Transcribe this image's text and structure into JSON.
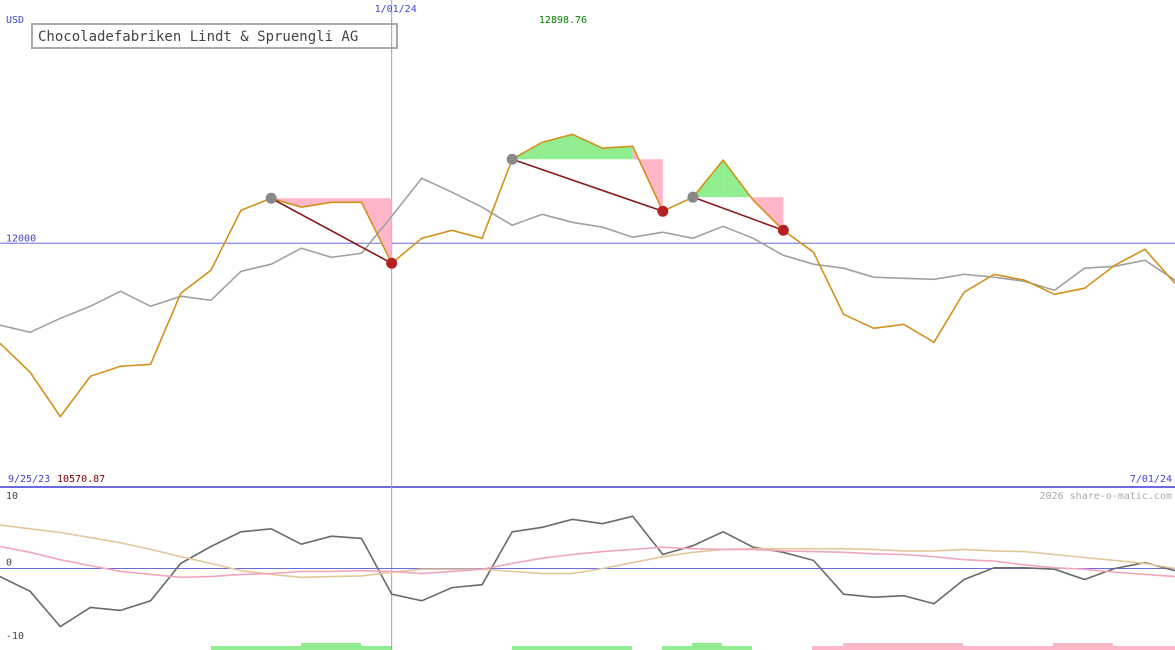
{
  "chart_data": [
    {
      "type": "line",
      "title": "Chocoladefabriken Lindt & Spruengli AG",
      "unit": "USD",
      "high": "12898.76",
      "low": "10570.87",
      "xlim": [
        0,
        39
      ],
      "xticks": [
        {
          "value": 0,
          "label": "9/25/23"
        },
        {
          "value": 13,
          "label": "1/01/24"
        },
        {
          "value": 39,
          "label": "7/01/24"
        }
      ],
      "ylim": [
        9990,
        13940
      ],
      "yticks": [
        12000
      ],
      "series": [
        {
          "color": "#d4901a",
          "values": [
            11175,
            10936,
            10570.87,
            10903,
            10985,
            11002,
            11588,
            11777,
            12272,
            12371,
            12297,
            12338,
            12338,
            11835,
            12041,
            12107,
            12041,
            12693,
            12833,
            12898.76,
            12784,
            12800,
            12264,
            12380,
            12685,
            12355,
            12107,
            11926,
            11414,
            11299,
            11332,
            11183,
            11596,
            11744,
            11695,
            11579,
            11629,
            11818,
            11950,
            11670
          ]
        },
        {
          "color": "#a0a0a0",
          "values": [
            11324,
            11266,
            11381,
            11480,
            11604,
            11480,
            11563,
            11530,
            11769,
            11827,
            11959,
            11884,
            11917,
            12223,
            12536,
            12421,
            12297,
            12149,
            12239,
            12173,
            12132,
            12050,
            12091,
            12041,
            12140,
            12041,
            11901,
            11827,
            11794,
            11720,
            11711,
            11703,
            11744,
            11720,
            11686,
            11612,
            11794,
            11810,
            11860,
            11695
          ]
        }
      ],
      "signals": [
        [
          9,
          13
        ],
        [
          17,
          22
        ],
        [
          23,
          26
        ]
      ]
    },
    {
      "type": "line",
      "caption": "2026 share-o-matic.com",
      "xlim": [
        0,
        39
      ],
      "ylim": [
        -10,
        10
      ],
      "yticks": [
        -10,
        0,
        10
      ],
      "series": [
        {
          "color": "#f2a6bd",
          "values": [
            3.0,
            2.2,
            1.2,
            0.4,
            -0.4,
            -0.8,
            -1.2,
            -1.1,
            -0.8,
            -0.7,
            -0.4,
            -0.4,
            -0.3,
            -0.4,
            -0.7,
            -0.4,
            -0.1,
            0.7,
            1.4,
            1.9,
            2.3,
            2.6,
            2.9,
            2.7,
            2.6,
            2.6,
            2.4,
            2.3,
            2.2,
            2.0,
            1.9,
            1.6,
            1.2,
            1.0,
            0.5,
            0.1,
            -0.1,
            -0.5,
            -0.8,
            -1.1
          ]
        },
        {
          "color": "#e2c79c",
          "values": [
            5.9,
            5.4,
            4.9,
            4.2,
            3.5,
            2.6,
            1.6,
            0.7,
            -0.3,
            -0.8,
            -1.2,
            -1.1,
            -1.0,
            -0.5,
            -0.1,
            -0.1,
            -0.1,
            -0.4,
            -0.7,
            -0.7,
            0,
            0.8,
            1.6,
            2.2,
            2.6,
            2.7,
            2.7,
            2.7,
            2.7,
            2.6,
            2.4,
            2.4,
            2.6,
            2.4,
            2.3,
            1.9,
            1.5,
            1.1,
            0.7,
            0
          ]
        },
        {
          "color": "#6a6a6a",
          "values": [
            -1.1,
            -3.1,
            -7.9,
            -5.3,
            -5.7,
            -4.4,
            0.7,
            3.0,
            5.0,
            5.4,
            3.3,
            4.4,
            4.1,
            -3.5,
            -4.4,
            -2.6,
            -2.2,
            5.0,
            5.6,
            6.7,
            6.1,
            7.1,
            1.9,
            3.1,
            5.0,
            2.9,
            2.2,
            1.1,
            -3.5,
            -3.9,
            -3.7,
            -4.8,
            -1.5,
            0.1,
            0.1,
            -0.1,
            -1.5,
            0,
            0.8,
            -0.3
          ]
        }
      ]
    }
  ]
}
